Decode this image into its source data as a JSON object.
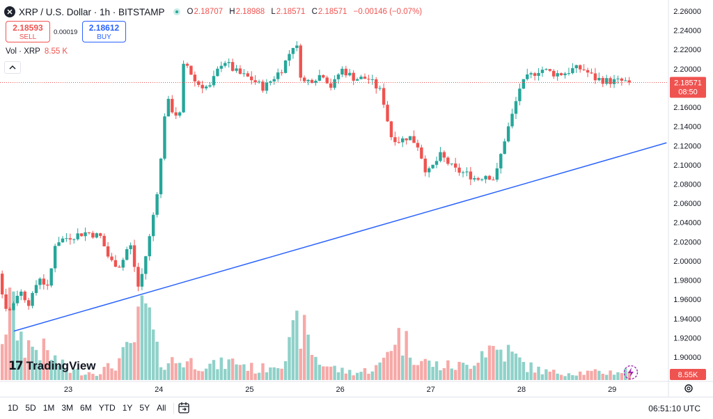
{
  "header": {
    "logo_letter": "✕",
    "symbol": "XRP / U.S. Dollar · 1h · BITSTAMP",
    "ohlc": {
      "O": "2.18707",
      "H": "2.18988",
      "L": "2.18571",
      "C": "2.18571",
      "change": "−0.00146 (−0.07%)"
    }
  },
  "trade": {
    "sell_price": "2.18593",
    "sell_label": "SELL",
    "spread": "0.00019",
    "buy_price": "2.18612",
    "buy_label": "BUY"
  },
  "volume_legend": {
    "label": "Vol · XRP",
    "value": "8.55 K"
  },
  "branding": {
    "mark": "17",
    "name": "TradingView"
  },
  "last_price": {
    "price": "2.18571",
    "countdown": "08:50",
    "color": "#ef5350"
  },
  "volume_badge": "8.55K",
  "bottom_bar": {
    "ranges": [
      "1D",
      "5D",
      "1M",
      "3M",
      "6M",
      "YTD",
      "1Y",
      "5Y",
      "All"
    ],
    "clock": "06:51:10 UTC"
  },
  "colors": {
    "up": "#26a69a",
    "down": "#ef5350",
    "up_vol": "#8fd1c9",
    "down_vol": "#f6a9a7",
    "trendline": "#2962ff"
  },
  "chart_data": {
    "type": "candlestick",
    "y_axis": {
      "ticks": [
        "2.26000",
        "2.24000",
        "2.22000",
        "2.20000",
        "2.18000",
        "2.16000",
        "2.14000",
        "2.12000",
        "2.10000",
        "2.08000",
        "2.06000",
        "2.04000",
        "2.02000",
        "2.00000",
        "1.98000",
        "1.96000",
        "1.94000",
        "1.92000",
        "1.90000"
      ],
      "range": [
        1.885,
        2.265
      ]
    },
    "x_axis": {
      "labels": [
        "23",
        "24",
        "25",
        "26",
        "27",
        "28",
        "29"
      ]
    },
    "trendline": {
      "from": {
        "day": 22.4,
        "price": 1.927
      },
      "to": {
        "day": 29.6,
        "price": 2.123
      }
    },
    "anchors": [
      [
        21.98,
        2.09
      ],
      [
        22.1,
        2.06
      ],
      [
        22.2,
        2.04
      ],
      [
        22.3,
        1.97
      ],
      [
        22.38,
        1.945
      ],
      [
        22.5,
        1.97
      ],
      [
        22.62,
        1.955
      ],
      [
        22.72,
        1.985
      ],
      [
        22.82,
        1.97
      ],
      [
        22.9,
        2.02
      ],
      [
        23.05,
        2.025
      ],
      [
        23.25,
        2.03
      ],
      [
        23.4,
        2.025
      ],
      [
        23.5,
        2.0
      ],
      [
        23.62,
        1.995
      ],
      [
        23.72,
        2.02
      ],
      [
        23.82,
        1.97
      ],
      [
        23.95,
        2.03
      ],
      [
        24.05,
        2.09
      ],
      [
        24.12,
        2.17
      ],
      [
        24.2,
        2.155
      ],
      [
        24.27,
        2.15
      ],
      [
        24.32,
        2.21
      ],
      [
        24.45,
        2.185
      ],
      [
        24.6,
        2.18
      ],
      [
        24.75,
        2.21
      ],
      [
        24.85,
        2.2
      ],
      [
        24.92,
        2.195
      ],
      [
        25.05,
        2.19
      ],
      [
        25.2,
        2.18
      ],
      [
        25.4,
        2.2
      ],
      [
        25.55,
        2.23
      ],
      [
        25.62,
        2.185
      ],
      [
        25.75,
        2.19
      ],
      [
        25.85,
        2.195
      ],
      [
        25.95,
        2.18
      ],
      [
        26.05,
        2.2
      ],
      [
        26.2,
        2.19
      ],
      [
        26.35,
        2.19
      ],
      [
        26.5,
        2.175
      ],
      [
        26.6,
        2.13
      ],
      [
        26.7,
        2.125
      ],
      [
        26.8,
        2.13
      ],
      [
        26.9,
        2.12
      ],
      [
        27.0,
        2.09
      ],
      [
        27.15,
        2.11
      ],
      [
        27.3,
        2.095
      ],
      [
        27.45,
        2.09
      ],
      [
        27.55,
        2.085
      ],
      [
        27.65,
        2.09
      ],
      [
        27.75,
        2.085
      ],
      [
        27.85,
        2.125
      ],
      [
        27.95,
        2.155
      ],
      [
        28.02,
        2.18
      ],
      [
        28.1,
        2.19
      ],
      [
        28.25,
        2.2
      ],
      [
        28.4,
        2.195
      ],
      [
        28.5,
        2.195
      ],
      [
        28.62,
        2.2
      ],
      [
        28.72,
        2.2
      ],
      [
        28.85,
        2.19
      ],
      [
        29.0,
        2.187
      ],
      [
        29.15,
        2.187
      ],
      [
        29.22,
        2.1857
      ]
    ],
    "volume_profile": [
      [
        21.95,
        0.7
      ],
      [
        22.2,
        2.0
      ],
      [
        22.35,
        8.0
      ],
      [
        22.5,
        4.0
      ],
      [
        22.75,
        3.0
      ],
      [
        23.0,
        1.0
      ],
      [
        23.3,
        0.8
      ],
      [
        23.5,
        1.5
      ],
      [
        23.7,
        3.5
      ],
      [
        23.85,
        8.0
      ],
      [
        24.0,
        2.0
      ],
      [
        24.3,
        2.0
      ],
      [
        24.6,
        1.5
      ],
      [
        24.85,
        2.0
      ],
      [
        25.1,
        1.0
      ],
      [
        25.4,
        2.5
      ],
      [
        25.55,
        6.0
      ],
      [
        25.75,
        2.0
      ],
      [
        26.0,
        1.0
      ],
      [
        26.2,
        0.8
      ],
      [
        26.45,
        1.5
      ],
      [
        26.6,
        5.0
      ],
      [
        26.72,
        4.0
      ],
      [
        26.9,
        2.0
      ],
      [
        27.1,
        1.5
      ],
      [
        27.4,
        1.5
      ],
      [
        27.6,
        3.5
      ],
      [
        27.85,
        3.0
      ],
      [
        28.05,
        1.5
      ],
      [
        28.3,
        0.8
      ],
      [
        28.6,
        0.8
      ],
      [
        28.9,
        0.8
      ],
      [
        29.22,
        1.0
      ]
    ],
    "candles": []
  }
}
